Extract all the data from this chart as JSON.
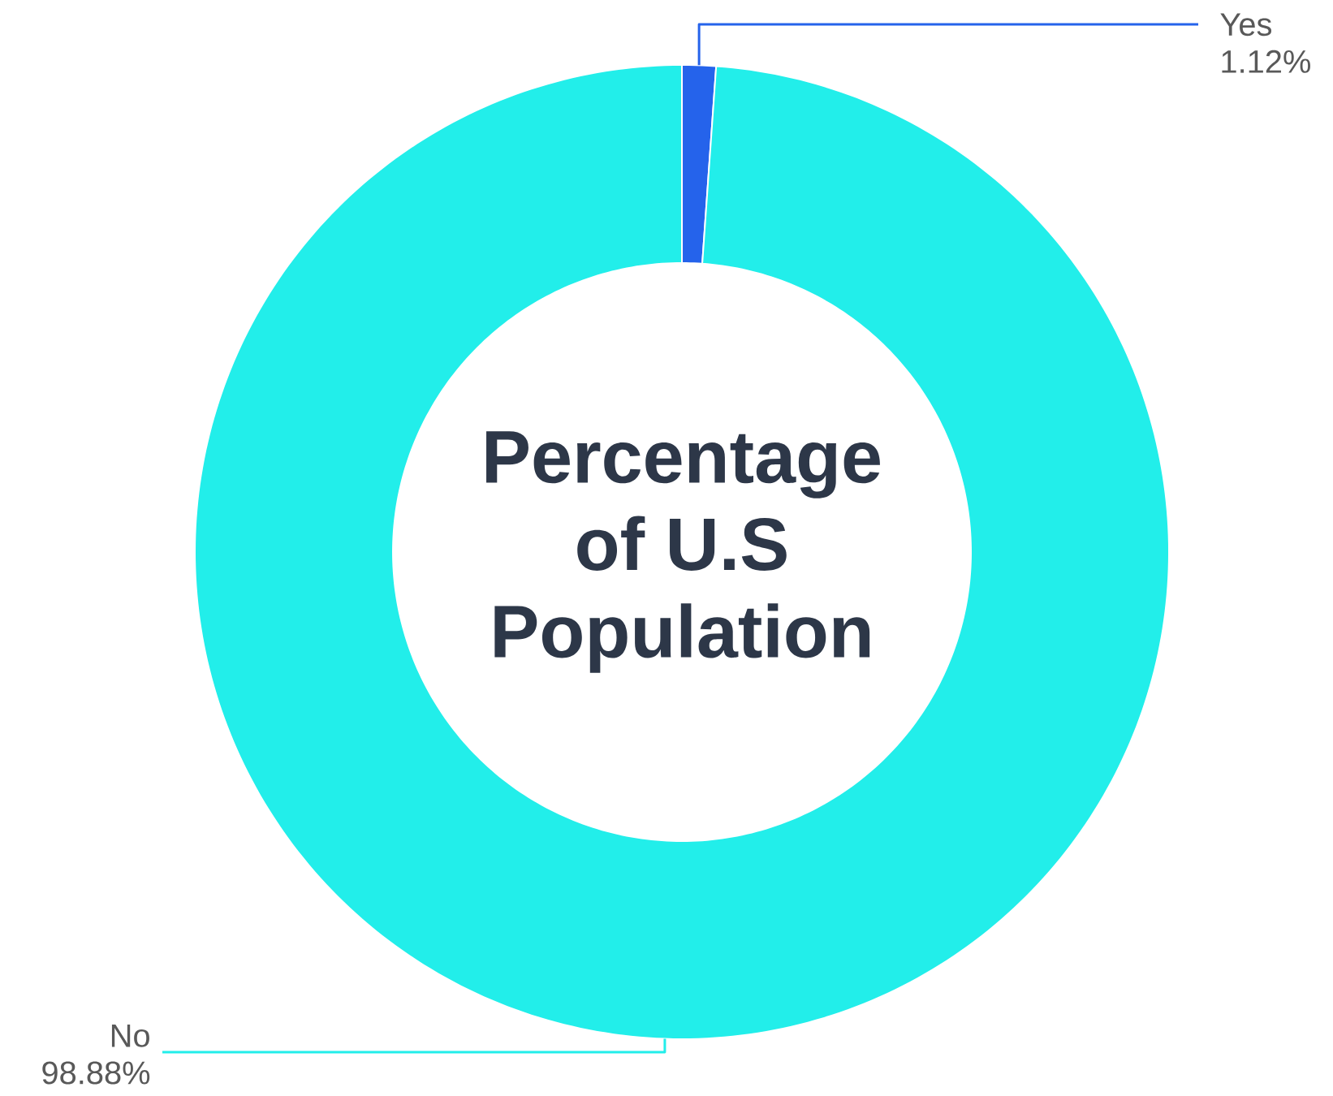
{
  "chart_data": {
    "type": "donut",
    "title": "Percentage of U.S Population",
    "categories": [
      "Yes",
      "No"
    ],
    "values": [
      1.12,
      98.88
    ],
    "colors": [
      "#2563eb",
      "#22eeea"
    ],
    "value_labels": [
      "1.12%",
      "98.88%"
    ]
  }
}
